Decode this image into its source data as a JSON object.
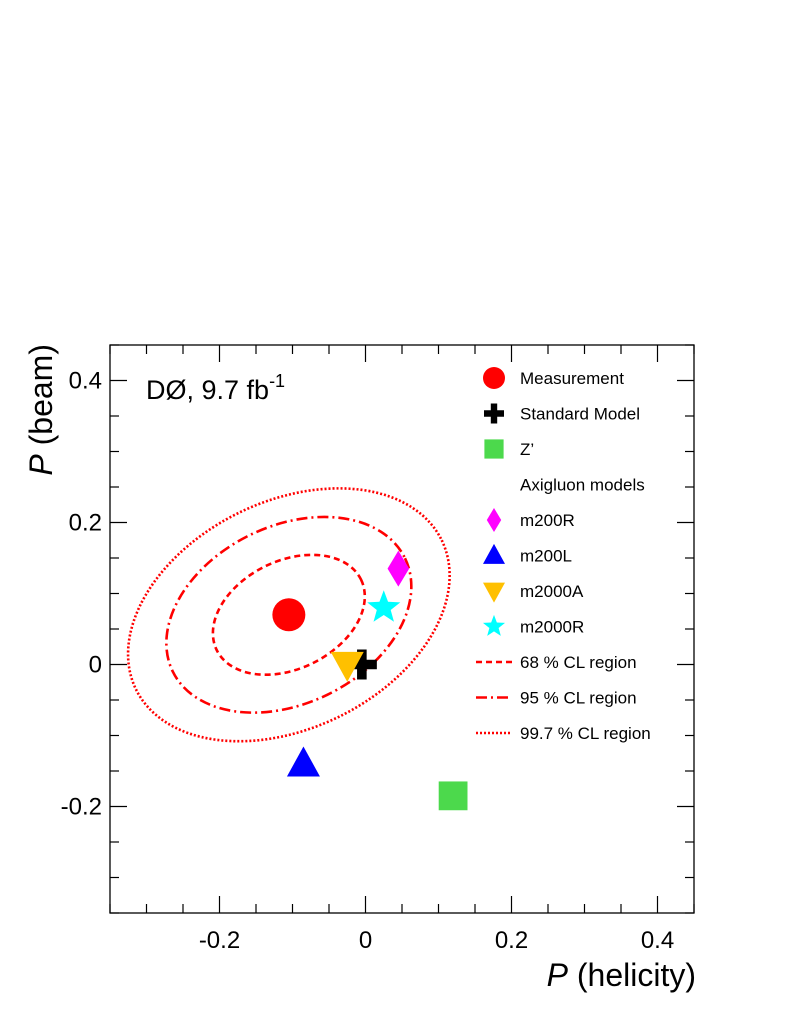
{
  "chart_data": {
    "type": "scatter",
    "title": "",
    "xlabel": {
      "italic": "P",
      "rest": " (helicity)"
    },
    "ylabel": {
      "italic": "P",
      "rest": " (beam)"
    },
    "xlim": [
      -0.35,
      0.45
    ],
    "ylim": [
      -0.35,
      0.45
    ],
    "xticks": [
      {
        "value": -0.2,
        "label": "-0.2"
      },
      {
        "value": 0,
        "label": "0"
      },
      {
        "value": 0.2,
        "label": "0.2"
      },
      {
        "value": 0.4,
        "label": "0.4"
      }
    ],
    "yticks": [
      {
        "value": -0.2,
        "label": "-0.2"
      },
      {
        "value": 0,
        "label": "0"
      },
      {
        "value": 0.2,
        "label": "0.2"
      },
      {
        "value": 0.4,
        "label": "0.4"
      }
    ],
    "minor_step": 0.05,
    "experiment_label": {
      "text": "DØ, 9.7 fb",
      "superscript": "-1"
    },
    "legend_position": "top-right",
    "points": [
      {
        "name": "Measurement",
        "marker": "circle",
        "color": "#ff0000",
        "x": -0.105,
        "y": 0.07
      },
      {
        "name": "Standard Model",
        "marker": "cross",
        "color": "#000000",
        "x": -0.005,
        "y": 0.0
      },
      {
        "name": "Z’",
        "marker": "square",
        "color": "#4cd94c",
        "x": 0.12,
        "y": -0.185
      },
      {
        "name": "m200R",
        "marker": "diamond",
        "color": "#ff00ff",
        "x": 0.045,
        "y": 0.135
      },
      {
        "name": "m200L",
        "marker": "triangle-up",
        "color": "#0000ff",
        "x": -0.085,
        "y": -0.14
      },
      {
        "name": "m2000A",
        "marker": "triangle-down",
        "color": "#ffc000",
        "x": -0.025,
        "y": 0.0
      },
      {
        "name": "m2000R",
        "marker": "star",
        "color": "#00ffff",
        "x": 0.025,
        "y": 0.08
      }
    ],
    "regions": [
      {
        "name": "68 % CL region",
        "style": "dashed",
        "color": "#ff0000",
        "ellipse": {
          "cx": -0.105,
          "cy": 0.07,
          "rx": 0.11,
          "ry": 0.076,
          "angle_deg": -26
        }
      },
      {
        "name": "95 % CL region",
        "style": "dashdot",
        "color": "#ff0000",
        "ellipse": {
          "cx": -0.105,
          "cy": 0.07,
          "rx": 0.177,
          "ry": 0.125,
          "angle_deg": -26
        }
      },
      {
        "name": "99.7 % CL region",
        "style": "dotted",
        "color": "#ff0000",
        "ellipse": {
          "cx": -0.105,
          "cy": 0.07,
          "rx": 0.233,
          "ry": 0.16,
          "angle_deg": -26
        }
      }
    ],
    "legend": [
      {
        "label": "Measurement",
        "marker": "circle",
        "color": "#ff0000"
      },
      {
        "label": "Standard Model",
        "marker": "cross",
        "color": "#000000"
      },
      {
        "label": "Z’",
        "marker": "square",
        "color": "#4cd94c"
      },
      {
        "label": "Axigluon models",
        "marker": "none",
        "color": ""
      },
      {
        "label": "m200R",
        "marker": "diamond",
        "color": "#ff00ff"
      },
      {
        "label": "m200L",
        "marker": "triangle-up",
        "color": "#0000ff"
      },
      {
        "label": "m2000A",
        "marker": "triangle-down",
        "color": "#ffc000"
      },
      {
        "label": "m2000R",
        "marker": "star",
        "color": "#00ffff"
      },
      {
        "label": "68 % CL region",
        "marker": "line-dashed",
        "color": "#ff0000"
      },
      {
        "label": "95 % CL region",
        "marker": "line-dashdot",
        "color": "#ff0000"
      },
      {
        "label": "99.7 % CL region",
        "marker": "line-dotted",
        "color": "#ff0000"
      }
    ]
  }
}
